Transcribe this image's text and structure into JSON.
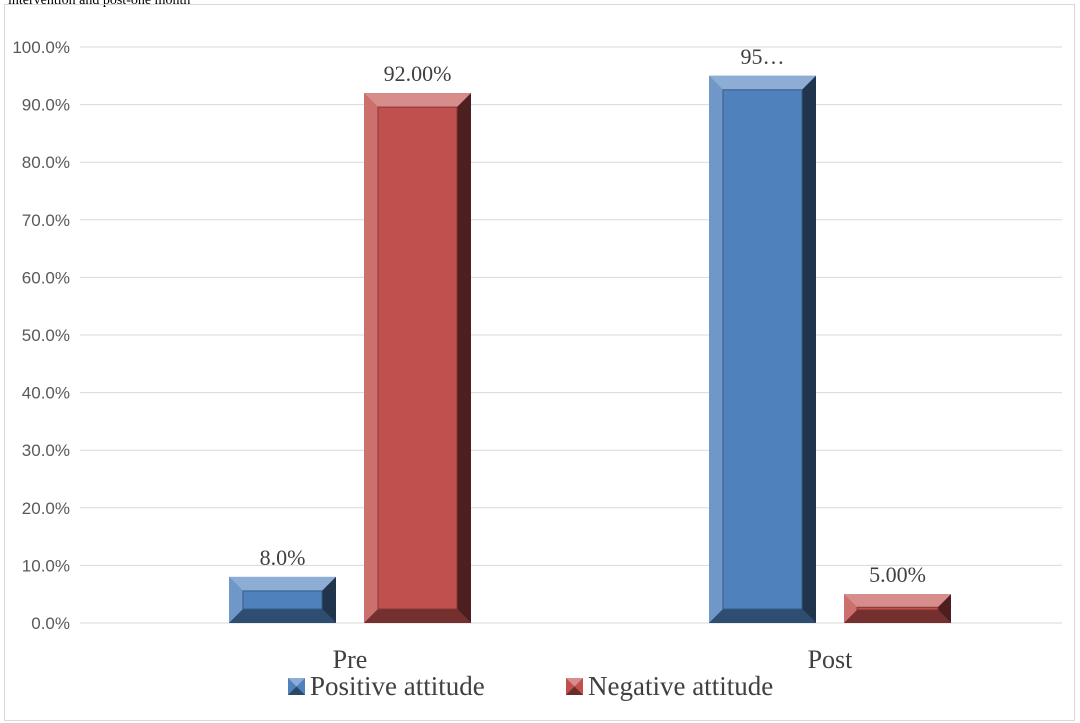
{
  "caption": "intervention and post-one month",
  "chart_data": {
    "type": "bar",
    "categories": [
      "Pre",
      "Post"
    ],
    "series": [
      {
        "name": "Positive attitude",
        "values": [
          8.0,
          95.0
        ],
        "labels": [
          "8.0%",
          "95…"
        ],
        "color": "#4f81bd"
      },
      {
        "name": "Negative attitude",
        "values": [
          92.0,
          5.0
        ],
        "labels": [
          "92.00%",
          "5.00%"
        ],
        "color": "#c0504d"
      }
    ],
    "y_ticks": [
      "0.0%",
      "10.0%",
      "20.0%",
      "30.0%",
      "40.0%",
      "50.0%",
      "60.0%",
      "70.0%",
      "80.0%",
      "90.0%",
      "100.0%"
    ],
    "ylim": [
      0,
      100
    ],
    "grid": true,
    "legend_position": "bottom"
  }
}
